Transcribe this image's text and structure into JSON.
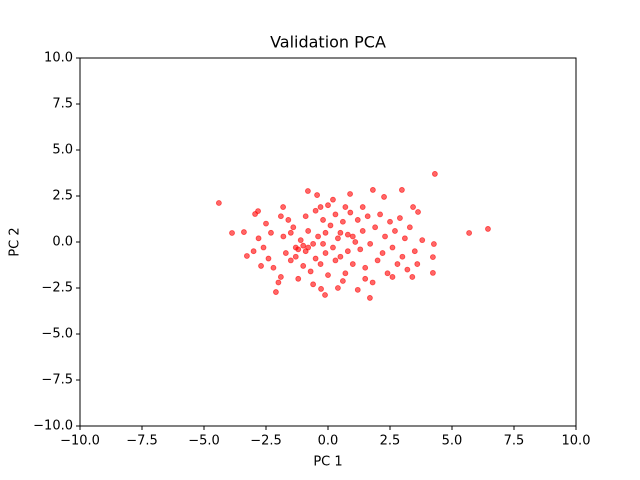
{
  "chart_data": {
    "type": "scatter",
    "title": "Validation PCA",
    "x_label": "PC 1",
    "y_label": "PC 2",
    "xlim": [
      -10,
      10
    ],
    "ylim": [
      -10,
      10
    ],
    "xticks": [
      {
        "value": -10,
        "label": "−10.0"
      },
      {
        "value": -7.5,
        "label": "−7.5"
      },
      {
        "value": -5,
        "label": "−5.0"
      },
      {
        "value": -2.5,
        "label": "−2.5"
      },
      {
        "value": 0,
        "label": "0.0"
      },
      {
        "value": 2.5,
        "label": "2.5"
      },
      {
        "value": 5,
        "label": "5.0"
      },
      {
        "value": 7.5,
        "label": "7.5"
      },
      {
        "value": 10,
        "label": "10.0"
      }
    ],
    "yticks": [
      {
        "value": -10,
        "label": "−10.0"
      },
      {
        "value": -7.5,
        "label": "−7.5"
      },
      {
        "value": -5,
        "label": "−5.0"
      },
      {
        "value": -2.5,
        "label": "−2.5"
      },
      {
        "value": 0,
        "label": "0.0"
      },
      {
        "value": 2.5,
        "label": "2.5"
      },
      {
        "value": 5,
        "label": "5.0"
      },
      {
        "value": 7.5,
        "label": "7.5"
      },
      {
        "value": 10,
        "label": "10.0"
      }
    ],
    "grid": false,
    "color": "#ff0000",
    "x": [
      -4.4,
      4.31,
      5.69,
      6.45,
      -3.87,
      -3.39,
      -3.27,
      4.23,
      4.23,
      4.27,
      1.69,
      -2.1,
      -0.12,
      -0.28,
      0.6,
      -0.81,
      -0.44,
      0.89,
      1.81,
      2.98,
      2.26,
      3.43,
      3.63,
      -2.82,
      -2.94,
      -1.81,
      -2.5,
      -2.3,
      -2.6,
      -2.4,
      -2.2,
      -2.0,
      -1.8,
      -1.7,
      -1.6,
      -1.5,
      -1.4,
      -1.3,
      -1.2,
      -1.1,
      -1.0,
      -1.0,
      -0.9,
      -0.9,
      -0.8,
      -0.7,
      -0.6,
      -0.5,
      -0.5,
      -0.4,
      -0.3,
      -0.2,
      -0.1,
      -0.1,
      0.0,
      0.0,
      0.1,
      0.2,
      0.3,
      0.3,
      0.4,
      0.5,
      0.6,
      0.7,
      0.8,
      0.8,
      0.9,
      1.0,
      1.1,
      1.2,
      1.3,
      1.4,
      1.5,
      1.6,
      1.7,
      1.8,
      1.9,
      2.0,
      2.1,
      2.2,
      2.3,
      2.4,
      2.5,
      2.6,
      2.7,
      2.8,
      2.9,
      3.0,
      3.1,
      3.2,
      3.3,
      3.5,
      3.6,
      3.8,
      -3.0,
      -2.8,
      -2.7,
      -1.9,
      -1.2,
      -0.6,
      0.4,
      1.2,
      1.5,
      -1.9,
      -1.5,
      -0.8,
      -0.2,
      0.5,
      1.0,
      -1.3,
      0.2,
      -0.3,
      0.7,
      1.4,
      2.6,
      3.4
    ],
    "y": [
      2.12,
      3.7,
      0.49,
      0.71,
      0.49,
      0.54,
      -0.76,
      -1.68,
      -0.82,
      -0.11,
      -3.04,
      -2.72,
      -2.88,
      -2.55,
      -2.12,
      2.77,
      2.55,
      2.61,
      2.83,
      2.83,
      2.45,
      1.9,
      1.63,
      1.68,
      1.52,
      1.9,
      1.0,
      0.5,
      -0.3,
      -0.9,
      -1.4,
      -2.2,
      0.3,
      -0.6,
      1.2,
      -1.0,
      0.8,
      -0.3,
      -0.4,
      0.1,
      -0.2,
      -1.3,
      1.4,
      -0.5,
      0.6,
      -1.6,
      -0.1,
      1.7,
      -0.9,
      0.3,
      -1.2,
      1.2,
      0.5,
      -0.6,
      2.0,
      -1.8,
      0.9,
      -0.3,
      1.5,
      -1.0,
      0.2,
      -0.8,
      1.1,
      -1.7,
      0.4,
      -0.5,
      1.6,
      -1.2,
      0.0,
      1.2,
      -0.4,
      0.6,
      -1.4,
      1.4,
      -0.1,
      -2.2,
      0.8,
      -1.0,
      1.5,
      -0.6,
      0.3,
      -1.7,
      1.1,
      -0.3,
      0.6,
      -1.2,
      1.3,
      -0.8,
      0.2,
      -1.5,
      0.8,
      -0.5,
      -1.2,
      0.1,
      -0.5,
      0.2,
      -1.3,
      -1.9,
      -2.0,
      -2.3,
      -2.5,
      -2.6,
      -2.0,
      1.4,
      0.5,
      -0.3,
      -0.1,
      0.5,
      0.3,
      -0.8,
      2.3,
      1.9,
      1.9,
      1.9,
      -1.9,
      -1.9
    ]
  }
}
